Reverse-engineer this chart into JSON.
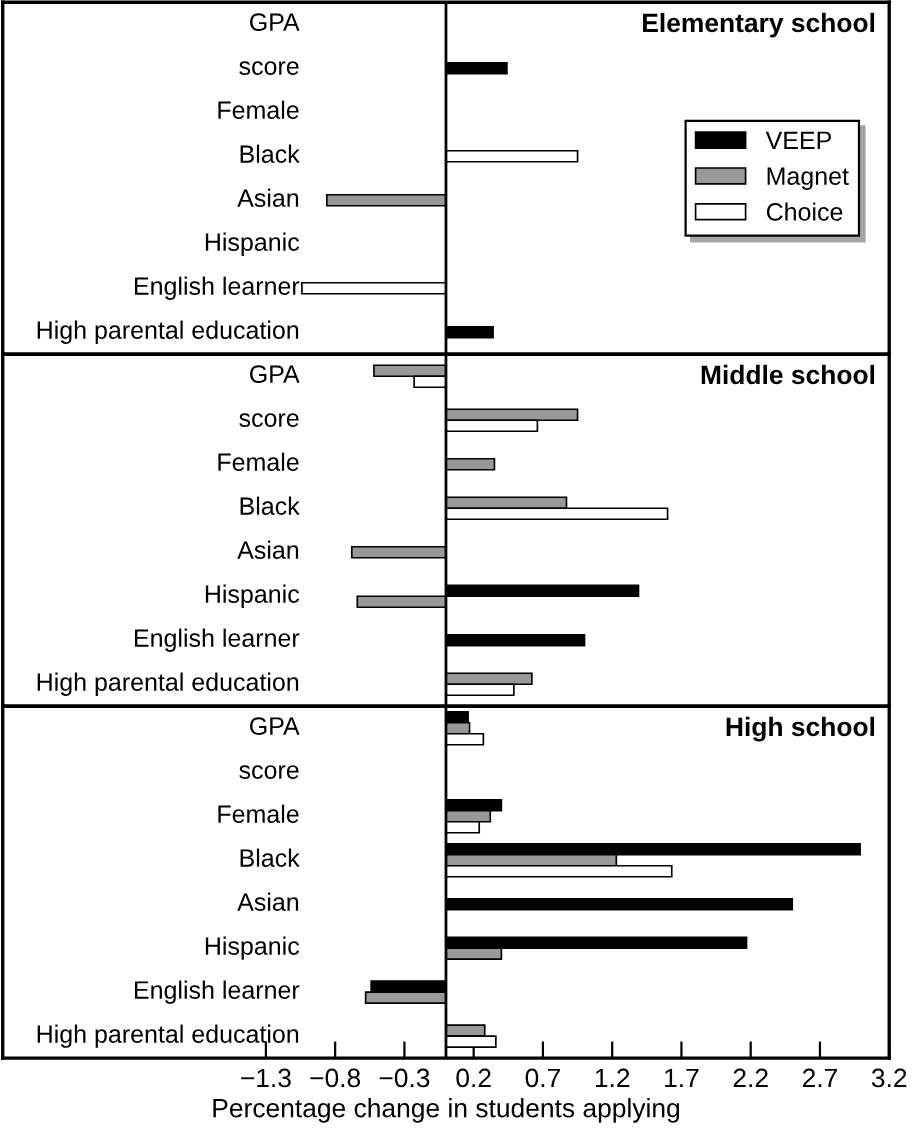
{
  "chart_data": [
    {
      "type": "bar",
      "orientation": "horizontal",
      "title": "Elementary school",
      "categories": [
        "GPA",
        "score",
        "Female",
        "Black",
        "Asian",
        "Hispanic",
        "English learner",
        "High parental education"
      ],
      "series": [
        {
          "name": "VEEP",
          "color": "#000000",
          "values": [
            null,
            0.44,
            null,
            null,
            null,
            null,
            null,
            0.34
          ]
        },
        {
          "name": "Magnet",
          "color": "#999999",
          "values": [
            null,
            null,
            null,
            null,
            -0.86,
            null,
            null,
            null
          ]
        },
        {
          "name": "Choice",
          "color": "#ffffff",
          "values": [
            null,
            null,
            null,
            0.95,
            null,
            null,
            -1.04,
            null
          ]
        }
      ],
      "xlim": [
        -3.2,
        3.2
      ],
      "xticks": [
        -1.3,
        -0.8,
        -0.3,
        0.2,
        0.7,
        1.2,
        1.7,
        2.2,
        2.7,
        3.2
      ],
      "ref_lines": [
        {
          "axis": "x",
          "value": 0,
          "color": "#000000"
        }
      ],
      "tick_labels": "y",
      "legend": "right",
      "grid": false
    },
    {
      "type": "bar",
      "orientation": "horizontal",
      "title": "Middle school",
      "categories": [
        "GPA",
        "score",
        "Female",
        "Black",
        "Asian",
        "Hispanic",
        "English learner",
        "High parental education"
      ],
      "series": [
        {
          "color": "#000000",
          "values": [
            null,
            null,
            null,
            null,
            null,
            1.39,
            1.0,
            null
          ]
        },
        {
          "color": "#999999",
          "values": [
            -0.52,
            0.95,
            0.35,
            0.87,
            -0.68,
            -0.64,
            null,
            0.62
          ]
        },
        {
          "color": "#ffffff",
          "values": [
            -0.23,
            0.66,
            null,
            1.6,
            null,
            null,
            null,
            0.49
          ]
        }
      ],
      "xlim": [
        -3.2,
        3.2
      ],
      "xticks": [
        -1.3,
        -0.8,
        -0.3,
        0.2,
        0.7,
        1.2,
        1.7,
        2.2,
        2.7,
        3.2
      ],
      "ref_lines": [
        {
          "axis": "x",
          "value": 0,
          "color": "#000000"
        }
      ],
      "tick_labels": "y",
      "legend": false,
      "grid": false
    },
    {
      "type": "bar",
      "orientation": "horizontal",
      "title": "High school",
      "xlabel": "Percentage change in students applying",
      "categories": [
        "GPA",
        "score",
        "Female",
        "Black",
        "Asian",
        "Hispanic",
        "English learner",
        "High parental education"
      ],
      "series": [
        {
          "color": "#000000",
          "values": [
            0.16,
            null,
            0.4,
            2.99,
            2.5,
            2.17,
            -0.54,
            null
          ]
        },
        {
          "color": "#999999",
          "values": [
            0.17,
            null,
            0.32,
            1.23,
            null,
            0.4,
            -0.58,
            0.28
          ]
        },
        {
          "color": "#ffffff",
          "values": [
            0.27,
            null,
            0.24,
            1.63,
            null,
            null,
            null,
            0.36
          ]
        }
      ],
      "xlim": [
        -3.2,
        3.2
      ],
      "xticks": [
        {
          "value": -1.3,
          "label": "−1.3"
        },
        {
          "value": -0.8,
          "label": "−0.8"
        },
        {
          "value": -0.3,
          "label": "−0.3"
        },
        0.2,
        0.7,
        1.2,
        1.7,
        2.2,
        2.7,
        3.2
      ],
      "ref_lines": [
        {
          "axis": "x",
          "value": 0,
          "color": "#000000"
        }
      ],
      "legend": false,
      "grid": false
    }
  ]
}
